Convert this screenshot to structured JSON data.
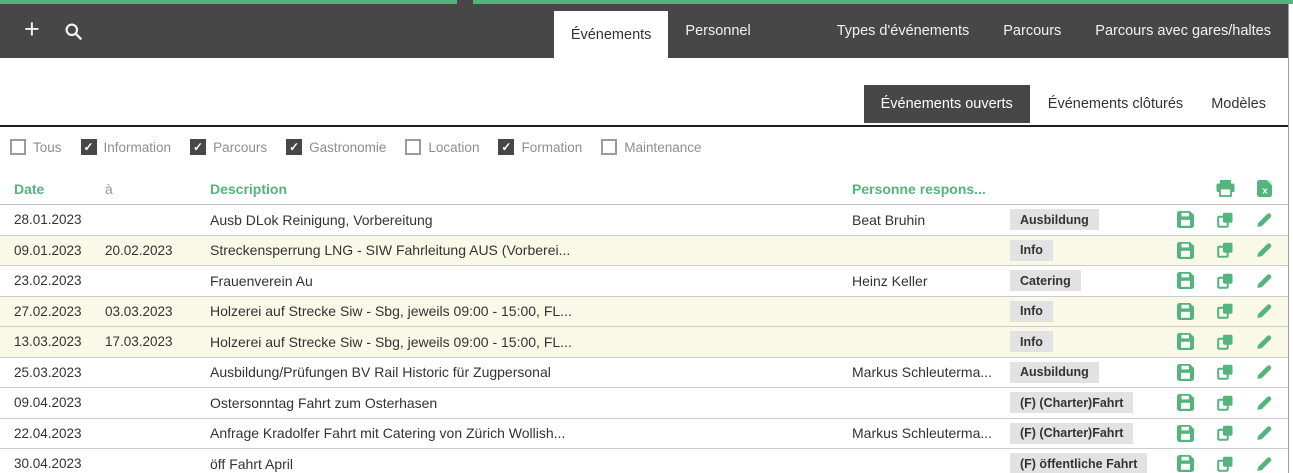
{
  "colors": {
    "accent": "#54b47d",
    "topbar": "#474747",
    "row_highlight": "#faf8e6",
    "badge_bg": "#e2e2e2",
    "page_bg": "#ffffff"
  },
  "icons": {
    "plus": "+",
    "check": "✓",
    "search": "magnifier",
    "print": "printer",
    "export": "excel-file",
    "save": "floppy-disk",
    "duplicate": "copy-pages",
    "edit": "pencil"
  },
  "topbar": {
    "tabs": [
      {
        "label": "Événements",
        "active": true
      },
      {
        "label": "Personnel",
        "active": false
      },
      {
        "label": "Types d'événements",
        "active": false,
        "gap_before": true
      },
      {
        "label": "Parcours",
        "active": false
      },
      {
        "label": "Parcours avec gares/haltes",
        "active": false
      }
    ]
  },
  "subtabs": [
    {
      "label": "Événements ouverts",
      "active": true
    },
    {
      "label": "Événements clôturés",
      "active": false
    },
    {
      "label": "Modèles",
      "active": false
    }
  ],
  "filters": [
    {
      "label": "Tous",
      "checked": false
    },
    {
      "label": "Information",
      "checked": true
    },
    {
      "label": "Parcours",
      "checked": true
    },
    {
      "label": "Gastronomie",
      "checked": true
    },
    {
      "label": "Location",
      "checked": false
    },
    {
      "label": "Formation",
      "checked": true
    },
    {
      "label": "Maintenance",
      "checked": false
    }
  ],
  "table": {
    "headers": {
      "date": "Date",
      "to": "à",
      "description": "Description",
      "person": "Personne respons..."
    },
    "rows": [
      {
        "date": "28.01.2023",
        "to": "",
        "description": "Ausb DLok Reinigung, Vorbereitung",
        "person": "Beat Bruhin",
        "type": "Ausbildung",
        "highlight": false
      },
      {
        "date": "09.01.2023",
        "to": "20.02.2023",
        "description": "Streckensperrung LNG - SIW Fahrleitung AUS (Vorberei...",
        "person": "",
        "type": "Info",
        "highlight": true
      },
      {
        "date": "23.02.2023",
        "to": "",
        "description": "Frauenverein Au",
        "person": "Heinz Keller",
        "type": "Catering",
        "highlight": false
      },
      {
        "date": "27.02.2023",
        "to": "03.03.2023",
        "description": "Holzerei auf Strecke Siw - Sbg, jeweils 09:00 - 15:00, FL...",
        "person": "",
        "type": "Info",
        "highlight": true
      },
      {
        "date": "13.03.2023",
        "to": "17.03.2023",
        "description": "Holzerei auf Strecke Siw - Sbg, jeweils 09:00 - 15:00, FL...",
        "person": "",
        "type": "Info",
        "highlight": true
      },
      {
        "date": "25.03.2023",
        "to": "",
        "description": "Ausbildung/Prüfungen BV Rail Historic für Zugpersonal",
        "person": "Markus Schleuterma...",
        "type": "Ausbildung",
        "highlight": false
      },
      {
        "date": "09.04.2023",
        "to": "",
        "description": "Ostersonntag Fahrt zum Osterhasen",
        "person": "",
        "type": "(F) (Charter)Fahrt",
        "highlight": false
      },
      {
        "date": "22.04.2023",
        "to": "",
        "description": "Anfrage Kradolfer Fahrt mit Catering von Zürich Wollish...",
        "person": "Markus Schleuterma...",
        "type": "(F) (Charter)Fahrt",
        "highlight": false
      },
      {
        "date": "30.04.2023",
        "to": "",
        "description": "öff Fahrt April",
        "person": "",
        "type": "(F) öffentliche Fahrt",
        "highlight": false
      }
    ]
  }
}
